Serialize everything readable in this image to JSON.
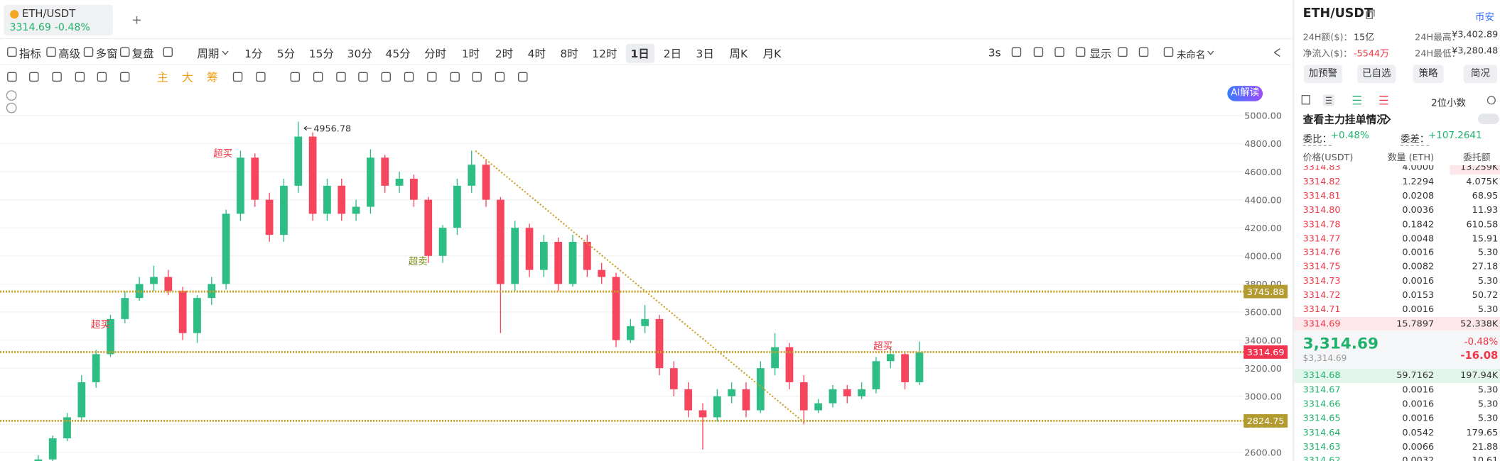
{
  "tab": {
    "symbol": "ETH/USDT",
    "price": "3314.69",
    "change": "-0.48%"
  },
  "toolbar": {
    "tools": [
      "指标",
      "高级",
      "多窗",
      "复盘"
    ],
    "period_menu": "周期",
    "periods": [
      "1分",
      "5分",
      "15分",
      "30分",
      "45分",
      "分时",
      "1时",
      "2时",
      "4时",
      "8时",
      "12时",
      "1日",
      "2日",
      "3日",
      "周K",
      "月K"
    ],
    "selected_period": 11,
    "refresh": "3s",
    "display": "显示",
    "layout_name": "未命名",
    "ai": "AI解读"
  },
  "drawbar": {
    "indicators": [
      "主",
      "大",
      "筹"
    ]
  },
  "chart_data": {
    "type": "candlestick",
    "open": [
      2500,
      2550,
      2700,
      2850,
      3100,
      3300,
      3550,
      3700,
      3800,
      3850,
      3750,
      3450,
      3700,
      3800,
      4300,
      4700,
      4400,
      4150,
      4500,
      4850,
      4300,
      4500,
      4300,
      4350,
      4700,
      4500,
      4550,
      4400,
      4000,
      4200,
      4500,
      4650,
      4400,
      3800,
      4200,
      3900,
      4100,
      3800,
      4100,
      3900,
      3850,
      3400,
      3500,
      3550,
      3200,
      3050,
      2900,
      2850,
      3000,
      3050,
      2900,
      3200,
      3350,
      3100,
      2900,
      2950,
      3050,
      3000,
      3050,
      3250,
      3300,
      3100
    ],
    "high": [
      2580,
      2720,
      2880,
      3150,
      3330,
      3580,
      3750,
      3850,
      3930,
      3900,
      3780,
      3720,
      3850,
      4330,
      4750,
      4730,
      4450,
      4550,
      4956.78,
      4880,
      4550,
      4550,
      4400,
      4760,
      4720,
      4600,
      4580,
      4420,
      4220,
      4550,
      4750,
      4680,
      4420,
      4250,
      4230,
      4150,
      4130,
      4150,
      4150,
      3950,
      3880,
      3550,
      3650,
      3580,
      3250,
      3100,
      2950,
      3050,
      3100,
      3100,
      3250,
      3450,
      3380,
      3150,
      2980,
      3080,
      3080,
      3100,
      3280,
      3350,
      3320,
      3390
    ],
    "low": [
      2470,
      2520,
      2680,
      2820,
      3060,
      3280,
      3520,
      3680,
      3750,
      3720,
      3400,
      3380,
      3650,
      3760,
      4250,
      4350,
      4100,
      4100,
      4450,
      4250,
      4250,
      4250,
      4250,
      4300,
      4450,
      4450,
      4350,
      3950,
      3950,
      4150,
      4450,
      4350,
      3450,
      3750,
      3850,
      3850,
      3750,
      3780,
      3850,
      3800,
      3350,
      3380,
      3450,
      3150,
      3000,
      2850,
      2620,
      2820,
      2950,
      2850,
      2880,
      3150,
      3050,
      2800,
      2880,
      2920,
      2950,
      2980,
      3020,
      3200,
      3050,
      3080
    ],
    "close": [
      2550,
      2700,
      2850,
      3100,
      3300,
      3550,
      3700,
      3800,
      3850,
      3750,
      3450,
      3700,
      3800,
      4300,
      4700,
      4400,
      4150,
      4500,
      4850,
      4300,
      4500,
      4300,
      4350,
      4700,
      4500,
      4550,
      4400,
      4000,
      4200,
      4500,
      4650,
      4400,
      3800,
      4200,
      3900,
      4100,
      3800,
      4100,
      3900,
      3850,
      3400,
      3500,
      3550,
      3200,
      3050,
      2900,
      2850,
      3000,
      3050,
      2900,
      3200,
      3350,
      3100,
      2900,
      2950,
      3050,
      3000,
      3050,
      3250,
      3300,
      3100,
      3314.69
    ],
    "up_color": "#2ebd85",
    "down_color": "#f6465d",
    "ylim": [
      2537.4,
      5197.3
    ],
    "yticks": [
      {
        "value": 2600,
        "label": "2600.00"
      },
      {
        "value": 2800,
        "label": "2800.00"
      },
      {
        "value": 3000,
        "label": "3000.00"
      },
      {
        "value": 3200,
        "label": "3200.00"
      },
      {
        "value": 3400,
        "label": "3400.00"
      },
      {
        "value": 3600,
        "label": "3600.00"
      },
      {
        "value": 3800,
        "label": "3800.00"
      },
      {
        "value": 4000,
        "label": "4000.00"
      },
      {
        "value": 4200,
        "label": "4200.00"
      },
      {
        "value": 4400,
        "label": "4400.00"
      },
      {
        "value": 4600,
        "label": "4600.00"
      },
      {
        "value": 4800,
        "label": "4800.00"
      },
      {
        "value": 5000,
        "label": "5000.00"
      }
    ],
    "grid": true,
    "price_lines": [
      3745.88,
      3314.69,
      2824.75
    ],
    "price_line_colors": [
      "#b39b2f",
      "#f0334f",
      "#b39b2f"
    ],
    "annotations": [
      "超买",
      "超买",
      "超卖",
      "超买"
    ]
  },
  "panel": {
    "symbol": "ETH/USDT",
    "exchange": "币安",
    "stats": [
      [
        "24H额($)：",
        "15亿"
      ],
      [
        "24H最高：",
        "¥3,402.89"
      ],
      [
        "净流入($)：",
        "-5544万"
      ],
      [
        "24H最低：",
        "¥3,280.48"
      ]
    ],
    "buttons": [
      "加预警",
      "已自选",
      "策略",
      "简况"
    ],
    "precision": "2位小数",
    "depth_link": "查看主力挂单情况",
    "ratio_label": "委比：",
    "ratio": "+0.48%",
    "diff_label": "委差：",
    "diff": "+107.2641",
    "columns": [
      "价格(USDT)",
      "数量 (ETH)",
      "委托额"
    ],
    "asks": [
      [
        "3314.83",
        "4.0000",
        "13.259K"
      ],
      [
        "3314.82",
        "1.2294",
        "4.075K"
      ],
      [
        "3314.81",
        "0.0208",
        "68.95"
      ],
      [
        "3314.80",
        "0.0036",
        "11.93"
      ],
      [
        "3314.78",
        "0.1842",
        "610.58"
      ],
      [
        "3314.77",
        "0.0048",
        "15.91"
      ],
      [
        "3314.76",
        "0.0016",
        "5.30"
      ],
      [
        "3314.75",
        "0.0082",
        "27.18"
      ],
      [
        "3314.73",
        "0.0016",
        "5.30"
      ],
      [
        "3314.72",
        "0.0153",
        "50.72"
      ],
      [
        "3314.71",
        "0.0016",
        "5.30"
      ],
      [
        "3314.69",
        "15.7897",
        "52.338K"
      ]
    ],
    "last_price": "3,314.69",
    "last_usd": "$3,314.69",
    "change_pct": "-0.48%",
    "change": "-16.08",
    "bids": [
      [
        "3314.68",
        "59.7162",
        "197.94K"
      ],
      [
        "3314.67",
        "0.0016",
        "5.30"
      ],
      [
        "3314.66",
        "0.0016",
        "5.30"
      ],
      [
        "3314.65",
        "0.0016",
        "5.30"
      ],
      [
        "3314.64",
        "0.0542",
        "179.65"
      ],
      [
        "3314.63",
        "0.0066",
        "21.88"
      ],
      [
        "3314.62",
        "0.0032",
        "10.61"
      ]
    ]
  }
}
